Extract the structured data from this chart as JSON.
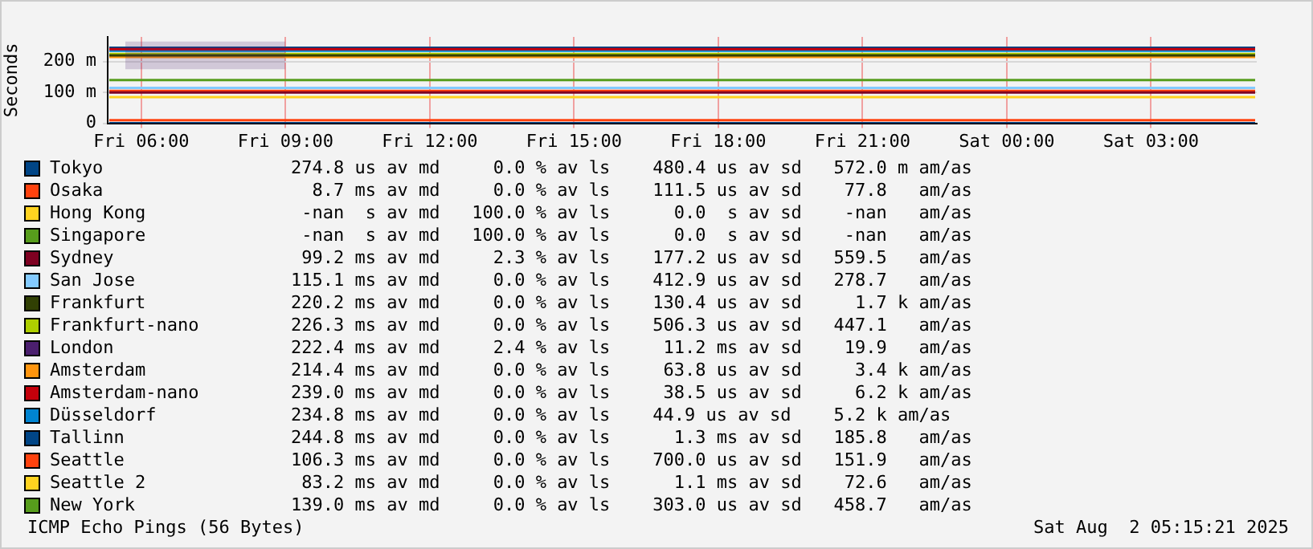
{
  "chart_data": {
    "type": "line",
    "ylabel": "Seconds",
    "xlim": [
      "2025-08-01T05:18",
      "2025-08-02T05:12"
    ],
    "xticks": [
      {
        "value": "2025-08-01T06:00",
        "label": "Fri 06:00"
      },
      {
        "value": "2025-08-01T09:00",
        "label": "Fri 09:00"
      },
      {
        "value": "2025-08-01T12:00",
        "label": "Fri 12:00"
      },
      {
        "value": "2025-08-01T15:00",
        "label": "Fri 15:00"
      },
      {
        "value": "2025-08-01T18:00",
        "label": "Fri 18:00"
      },
      {
        "value": "2025-08-01T21:00",
        "label": "Fri 21:00"
      },
      {
        "value": "2025-08-02T00:00",
        "label": "Sat 00:00"
      },
      {
        "value": "2025-08-02T03:00",
        "label": "Sat 03:00"
      }
    ],
    "ylim": [
      0,
      280
    ],
    "yticks": [
      0,
      {
        "value": 100,
        "label": "100 m"
      },
      {
        "value": 200,
        "label": "200 m"
      }
    ],
    "grid": true,
    "legend": "bottom",
    "marker": "none",
    "line_style": "solid",
    "series": [
      {
        "name": "Tokyo",
        "color": "#004586",
        "x": [
          "2025-08-01T05:20",
          "2025-08-02T05:10"
        ],
        "values": [
          0,
          0
        ]
      },
      {
        "name": "Osaka",
        "color": "#ff420e",
        "x": [
          "2025-08-01T05:20",
          "2025-08-02T05:10"
        ],
        "values": [
          10,
          10
        ]
      },
      {
        "name": "Hong Kong",
        "color": "#ffd320",
        "values": [
          null
        ]
      },
      {
        "name": "Singapore",
        "color": "#579d1c",
        "values": [
          null
        ]
      },
      {
        "name": "Sydney",
        "color": "#7e0021",
        "x": [
          "2025-08-01T05:20",
          "2025-08-02T05:10"
        ],
        "values": [
          100,
          100
        ]
      },
      {
        "name": "San Jose",
        "color": "#83caff",
        "x": [
          "2025-08-01T05:20",
          "2025-08-02T05:10"
        ],
        "values": [
          115,
          115
        ]
      },
      {
        "name": "Frankfurt",
        "color": "#314004",
        "x": [
          "2025-08-01T05:20",
          "2025-08-02T05:10"
        ],
        "values": [
          220,
          220
        ]
      },
      {
        "name": "Frankfurt-nano",
        "color": "#aecf00",
        "x": [
          "2025-08-01T05:20",
          "2025-08-02T05:10"
        ],
        "values": [
          225,
          225
        ]
      },
      {
        "name": "London",
        "color": "#4b1f6f",
        "x": [
          "2025-08-01T05:40",
          "2025-08-01T09:00"
        ],
        "values": [
          null,
          null
        ],
        "lower": [
          175,
          175
        ],
        "upper": [
          265,
          265
        ]
      },
      {
        "name": "Amsterdam",
        "color": "#ff950e",
        "x": [
          "2025-08-01T05:20",
          "2025-08-02T05:10"
        ],
        "values": [
          215,
          215
        ]
      },
      {
        "name": "Amsterdam-nano",
        "color": "#c5000b",
        "x": [
          "2025-08-01T05:20",
          "2025-08-02T05:10"
        ],
        "values": [
          240,
          240
        ]
      },
      {
        "name": "Düsseldorf",
        "color": "#0084d1",
        "x": [
          "2025-08-01T05:20",
          "2025-08-02T05:10"
        ],
        "values": [
          235,
          235
        ]
      },
      {
        "name": "Tallinn",
        "color": "#004586",
        "x": [
          "2025-08-01T05:20",
          "2025-08-02T05:10"
        ],
        "values": [
          245,
          245
        ]
      },
      {
        "name": "Seattle",
        "color": "#ff420e",
        "x": [
          "2025-08-01T05:20",
          "2025-08-02T05:10"
        ],
        "values": [
          105,
          105
        ]
      },
      {
        "name": "Seattle 2",
        "color": "#ffd320",
        "x": [
          "2025-08-01T05:20",
          "2025-08-02T05:10"
        ],
        "values": [
          85,
          85
        ]
      },
      {
        "name": "New York",
        "color": "#579d1c",
        "x": [
          "2025-08-01T05:20",
          "2025-08-02T05:10"
        ],
        "values": [
          140,
          140
        ]
      }
    ],
    "annotations": [
      "274.8 us av md     0.0 % av ls    480.4 us av sd   572.0 m am/as",
      "  8.7 ms av md     0.0 % av ls    111.5 us av sd    77.8   am/as",
      " -nan  s av md   100.0 % av ls      0.0  s av sd    -nan   am/as",
      " -nan  s av md   100.0 % av ls      0.0  s av sd    -nan   am/as",
      " 99.2 ms av md     2.3 % av ls    177.2 us av sd   559.5   am/as",
      "115.1 ms av md     0.0 % av ls    412.9 us av sd   278.7   am/as",
      "220.2 ms av md     0.0 % av ls    130.4 us av sd     1.7 k am/as",
      "226.3 ms av md     0.0 % av ls    506.3 us av sd   447.1   am/as",
      "222.4 ms av md     2.4 % av ls     11.2 ms av sd    19.9   am/as",
      "214.4 ms av md     0.0 % av ls     63.8 us av sd     3.4 k am/as",
      "239.0 ms av md     0.0 % av ls     38.5 us av sd     6.2 k am/as",
      "234.8 ms av md     0.0 % av ls    44.9 us av sd    5.2 k am/as",
      "244.8 ms av md     0.0 % av ls      1.3 ms av sd   185.8   am/as",
      "106.3 ms av md     0.0 % av ls    700.0 us av sd   151.9   am/as",
      " 83.2 ms av md     0.0 % av ls      1.1 ms av sd    72.6   am/as",
      "139.0 ms av md     0.0 % av ls    303.0 us av sd   458.7   am/as",
      "ICMP Echo Pings (56 Bytes)",
      "Sat Aug  2 05:15:21 2025"
    ]
  }
}
